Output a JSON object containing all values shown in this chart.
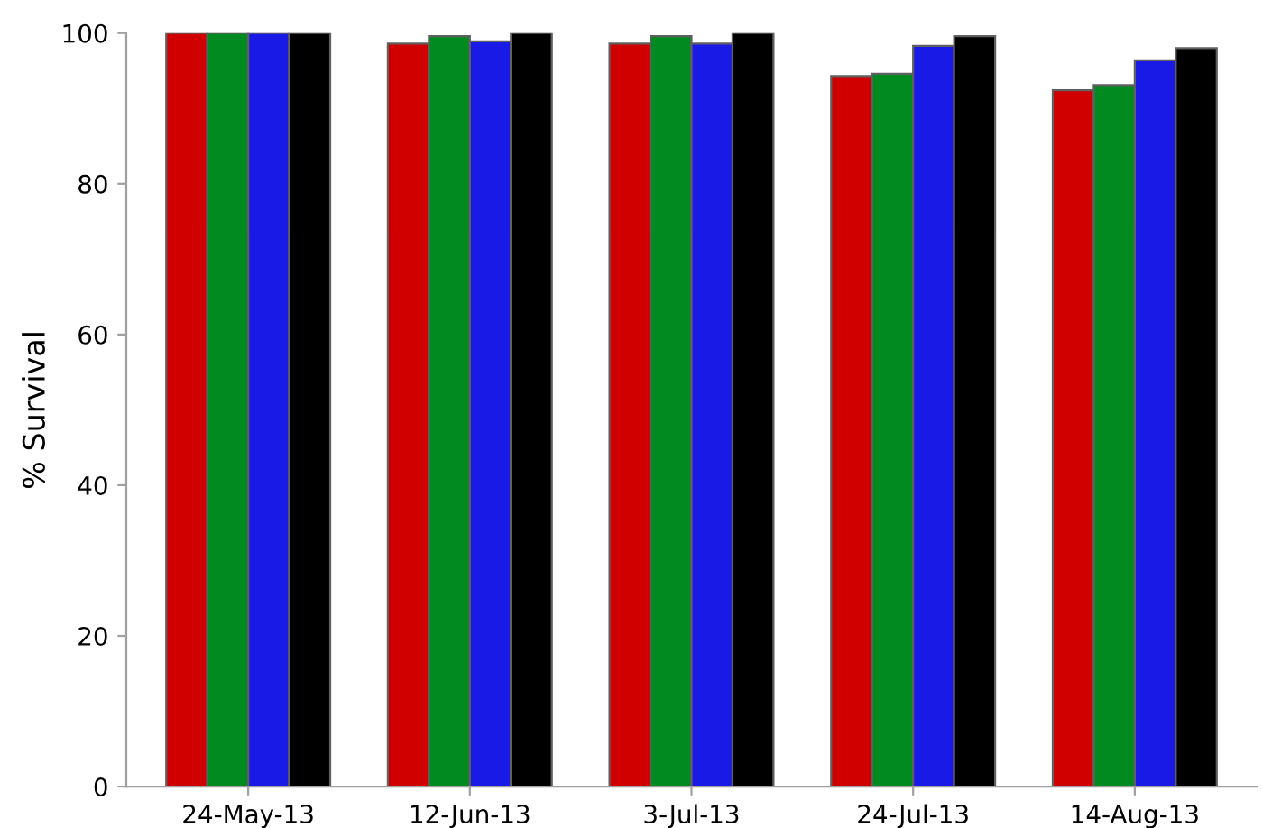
{
  "chart_data": {
    "type": "bar",
    "ylabel": "% Survival",
    "categories": [
      "24-May-13",
      "12-Jun-13",
      "3-Jul-13",
      "24-Jul-13",
      "14-Aug-13"
    ],
    "series": [
      {
        "color": "#d00000",
        "values": [
          100,
          98.6,
          98.6,
          94.3,
          92.4
        ]
      },
      {
        "color": "#008a20",
        "values": [
          100,
          99.6,
          99.6,
          94.6,
          93.1
        ]
      },
      {
        "color": "#1a1ae6",
        "values": [
          100,
          98.9,
          98.6,
          98.3,
          96.4
        ]
      },
      {
        "color": "#000000",
        "values": [
          100,
          100,
          100,
          99.6,
          98.0
        ]
      }
    ],
    "ylim": [
      0,
      100
    ],
    "yticks": [
      0,
      20,
      40,
      60,
      80,
      100
    ],
    "grid": false,
    "legend": false
  }
}
